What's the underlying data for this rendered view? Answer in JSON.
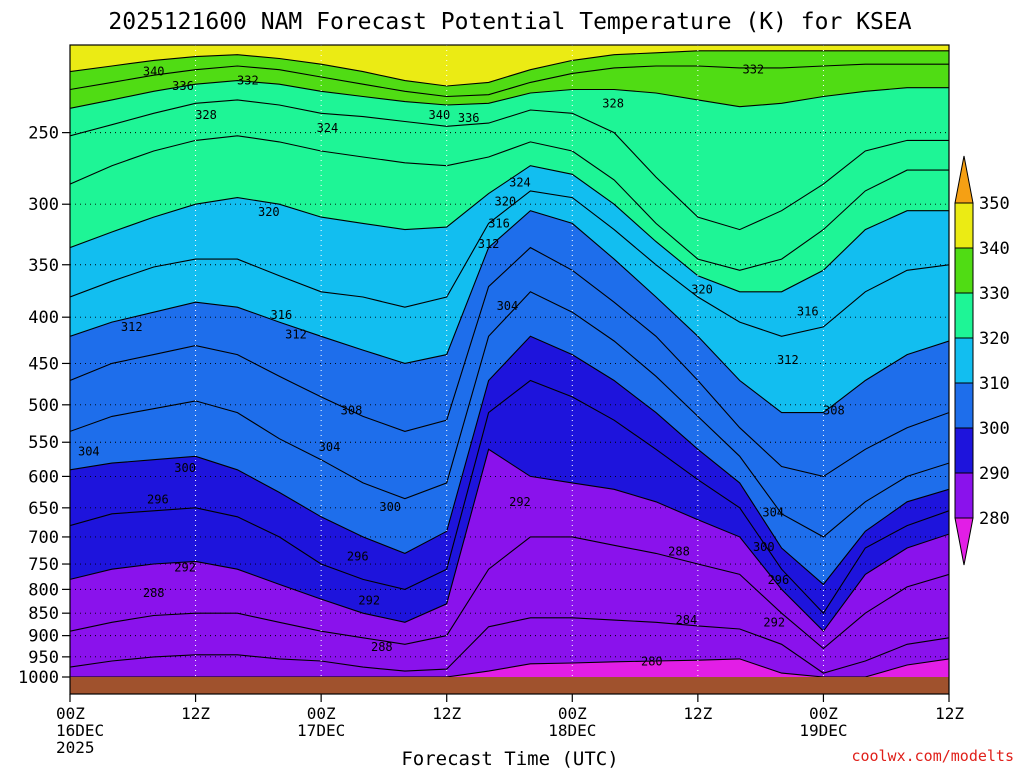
{
  "chart_data": {
    "type": "heatmap",
    "title": "2025121600 NAM Forecast Potential Temperature (K) for KSEA",
    "xlabel": "Forecast Time (UTC)",
    "ylabel": "",
    "credit": "coolwx.com/modelts",
    "y_scale": "log",
    "y_range": [
      1000,
      200
    ],
    "x_range_hours": [
      0,
      84
    ],
    "y_ticks": [
      250,
      300,
      350,
      400,
      450,
      500,
      550,
      600,
      650,
      700,
      750,
      800,
      850,
      900,
      950,
      1000
    ],
    "x_ticks": [
      {
        "hour": 0,
        "line1": "00Z",
        "line2": "16DEC",
        "line3": "2025"
      },
      {
        "hour": 12,
        "line1": "12Z",
        "line2": "",
        "line3": ""
      },
      {
        "hour": 24,
        "line1": "00Z",
        "line2": "17DEC",
        "line3": ""
      },
      {
        "hour": 36,
        "line1": "12Z",
        "line2": "",
        "line3": ""
      },
      {
        "hour": 48,
        "line1": "00Z",
        "line2": "18DEC",
        "line3": ""
      },
      {
        "hour": 60,
        "line1": "12Z",
        "line2": "",
        "line3": ""
      },
      {
        "hour": 72,
        "line1": "00Z",
        "line2": "19DEC",
        "line3": ""
      },
      {
        "hour": 84,
        "line1": "12Z",
        "line2": "",
        "line3": ""
      }
    ],
    "colorbar": {
      "levels": [
        280,
        290,
        300,
        310,
        320,
        330,
        340,
        350
      ],
      "colors": [
        "#e21ee6",
        "#8a12ec",
        "#1e14dc",
        "#1e6eeb",
        "#12bef0",
        "#1ef596",
        "#50dc14",
        "#ebeb14",
        "#f5a014"
      ]
    },
    "isentrope_hour_samples": [
      0,
      4,
      8,
      12,
      16,
      20,
      24,
      28,
      32,
      36,
      40,
      44,
      48,
      52,
      56,
      60,
      64,
      68,
      72,
      76,
      80,
      84
    ],
    "isentropes": [
      {
        "theta": 280,
        "p": [
          1000,
          1000,
          1000,
          1000,
          1000,
          1000,
          1000,
          1000,
          1000,
          1000,
          985,
          967,
          965,
          962,
          960,
          958,
          955,
          990,
          1000,
          1000,
          970,
          955
        ]
      },
      {
        "theta": 284,
        "p": [
          975,
          960,
          950,
          945,
          945,
          955,
          960,
          975,
          985,
          980,
          880,
          860,
          860,
          865,
          870,
          878,
          885,
          920,
          990,
          960,
          920,
          905
        ]
      },
      {
        "theta": 288,
        "p": [
          890,
          870,
          855,
          850,
          850,
          870,
          890,
          905,
          920,
          900,
          760,
          700,
          700,
          715,
          730,
          750,
          770,
          850,
          930,
          850,
          795,
          770
        ]
      },
      {
        "theta": 292,
        "p": [
          780,
          760,
          750,
          745,
          760,
          790,
          820,
          850,
          870,
          830,
          560,
          600,
          610,
          620,
          640,
          670,
          700,
          800,
          890,
          770,
          720,
          695
        ]
      },
      {
        "theta": 296,
        "p": [
          680,
          660,
          655,
          650,
          665,
          700,
          750,
          780,
          800,
          760,
          510,
          470,
          490,
          520,
          560,
          605,
          650,
          760,
          850,
          720,
          680,
          655
        ]
      },
      {
        "theta": 300,
        "p": [
          590,
          580,
          575,
          570,
          590,
          625,
          665,
          700,
          730,
          690,
          470,
          420,
          440,
          470,
          510,
          560,
          610,
          720,
          790,
          690,
          640,
          620
        ]
      },
      {
        "theta": 304,
        "p": [
          535,
          515,
          505,
          495,
          510,
          545,
          575,
          610,
          635,
          610,
          420,
          375,
          395,
          425,
          465,
          515,
          570,
          660,
          700,
          640,
          600,
          580
        ]
      },
      {
        "theta": 308,
        "p": [
          470,
          450,
          440,
          430,
          440,
          465,
          490,
          515,
          535,
          520,
          370,
          335,
          355,
          385,
          420,
          470,
          530,
          585,
          600,
          560,
          530,
          510
        ]
      },
      {
        "theta": 312,
        "p": [
          420,
          405,
          395,
          385,
          390,
          405,
          420,
          435,
          450,
          440,
          335,
          305,
          315,
          345,
          380,
          420,
          470,
          510,
          510,
          470,
          440,
          425
        ]
      },
      {
        "theta": 316,
        "p": [
          380,
          365,
          352,
          345,
          345,
          360,
          375,
          380,
          390,
          380,
          315,
          290,
          295,
          320,
          350,
          380,
          405,
          420,
          410,
          375,
          355,
          350
        ]
      },
      {
        "theta": 320,
        "p": [
          335,
          322,
          310,
          300,
          295,
          300,
          310,
          315,
          320,
          318,
          292,
          272,
          278,
          300,
          330,
          360,
          375,
          375,
          355,
          320,
          305,
          305
        ]
      },
      {
        "theta": 324,
        "p": [
          285,
          272,
          262,
          255,
          252,
          256,
          262,
          266,
          270,
          272,
          266,
          256,
          262,
          282,
          315,
          345,
          355,
          345,
          320,
          290,
          275,
          275
        ]
      },
      {
        "theta": 328,
        "p": [
          252,
          245,
          238,
          232,
          230,
          233,
          238,
          240,
          243,
          246,
          244,
          236,
          238,
          250,
          280,
          310,
          320,
          305,
          285,
          262,
          255,
          255
        ]
      },
      {
        "theta": 332,
        "p": [
          235,
          230,
          225,
          221,
          219,
          221,
          225,
          228,
          231,
          233,
          232,
          226,
          224,
          224,
          226,
          230,
          234,
          232,
          228,
          225,
          223,
          223
        ]
      },
      {
        "theta": 336,
        "p": [
          224,
          220,
          216,
          213,
          211,
          213,
          217,
          221,
          225,
          228,
          227,
          220,
          215,
          212,
          211,
          211,
          212,
          212,
          211,
          210,
          210,
          210
        ]
      },
      {
        "theta": 340,
        "p": [
          214,
          211,
          208,
          206,
          205,
          207,
          210,
          214,
          219,
          222,
          220,
          213,
          208,
          205,
          204,
          203,
          203,
          203,
          203,
          203,
          203,
          203
        ]
      }
    ],
    "contour_labels": [
      {
        "text": "340",
        "hour": 8.0,
        "p": 214
      },
      {
        "text": "336",
        "hour": 10.8,
        "p": 222
      },
      {
        "text": "332",
        "hour": 17.0,
        "p": 219
      },
      {
        "text": "328",
        "hour": 13.0,
        "p": 239
      },
      {
        "text": "324",
        "hour": 24.6,
        "p": 247
      },
      {
        "text": "320",
        "hour": 19.0,
        "p": 306
      },
      {
        "text": "316",
        "hour": 20.2,
        "p": 398
      },
      {
        "text": "312",
        "hour": 21.6,
        "p": 418
      },
      {
        "text": "312",
        "hour": 5.9,
        "p": 410
      },
      {
        "text": "308",
        "hour": 26.9,
        "p": 507
      },
      {
        "text": "304",
        "hour": 24.8,
        "p": 557
      },
      {
        "text": "304",
        "hour": 1.8,
        "p": 563
      },
      {
        "text": "300",
        "hour": 11.0,
        "p": 587
      },
      {
        "text": "300",
        "hour": 30.6,
        "p": 649
      },
      {
        "text": "296",
        "hour": 8.4,
        "p": 636
      },
      {
        "text": "296",
        "hour": 27.5,
        "p": 736
      },
      {
        "text": "292",
        "hour": 11.0,
        "p": 757
      },
      {
        "text": "292",
        "hour": 28.6,
        "p": 823
      },
      {
        "text": "288",
        "hour": 8.0,
        "p": 807
      },
      {
        "text": "288",
        "hour": 29.8,
        "p": 926
      },
      {
        "text": "340",
        "hour": 35.3,
        "p": 239
      },
      {
        "text": "336",
        "hour": 38.1,
        "p": 241
      },
      {
        "text": "332",
        "hour": 65.3,
        "p": 213
      },
      {
        "text": "328",
        "hour": 51.9,
        "p": 232
      },
      {
        "text": "324",
        "hour": 43.0,
        "p": 284
      },
      {
        "text": "320",
        "hour": 41.6,
        "p": 298
      },
      {
        "text": "316",
        "hour": 41.0,
        "p": 315
      },
      {
        "text": "312",
        "hour": 40.0,
        "p": 332
      },
      {
        "text": "320",
        "hour": 60.4,
        "p": 373
      },
      {
        "text": "304",
        "hour": 41.8,
        "p": 389
      },
      {
        "text": "316",
        "hour": 70.5,
        "p": 394
      },
      {
        "text": "312",
        "hour": 68.6,
        "p": 446
      },
      {
        "text": "308",
        "hour": 73.0,
        "p": 507
      },
      {
        "text": "292",
        "hour": 43.0,
        "p": 640
      },
      {
        "text": "304",
        "hour": 67.2,
        "p": 658
      },
      {
        "text": "300",
        "hour": 66.3,
        "p": 718
      },
      {
        "text": "288",
        "hour": 58.2,
        "p": 726
      },
      {
        "text": "296",
        "hour": 67.7,
        "p": 781
      },
      {
        "text": "284",
        "hour": 58.9,
        "p": 865
      },
      {
        "text": "292",
        "hour": 67.3,
        "p": 870
      },
      {
        "text": "280",
        "hour": 55.6,
        "p": 961
      }
    ]
  }
}
